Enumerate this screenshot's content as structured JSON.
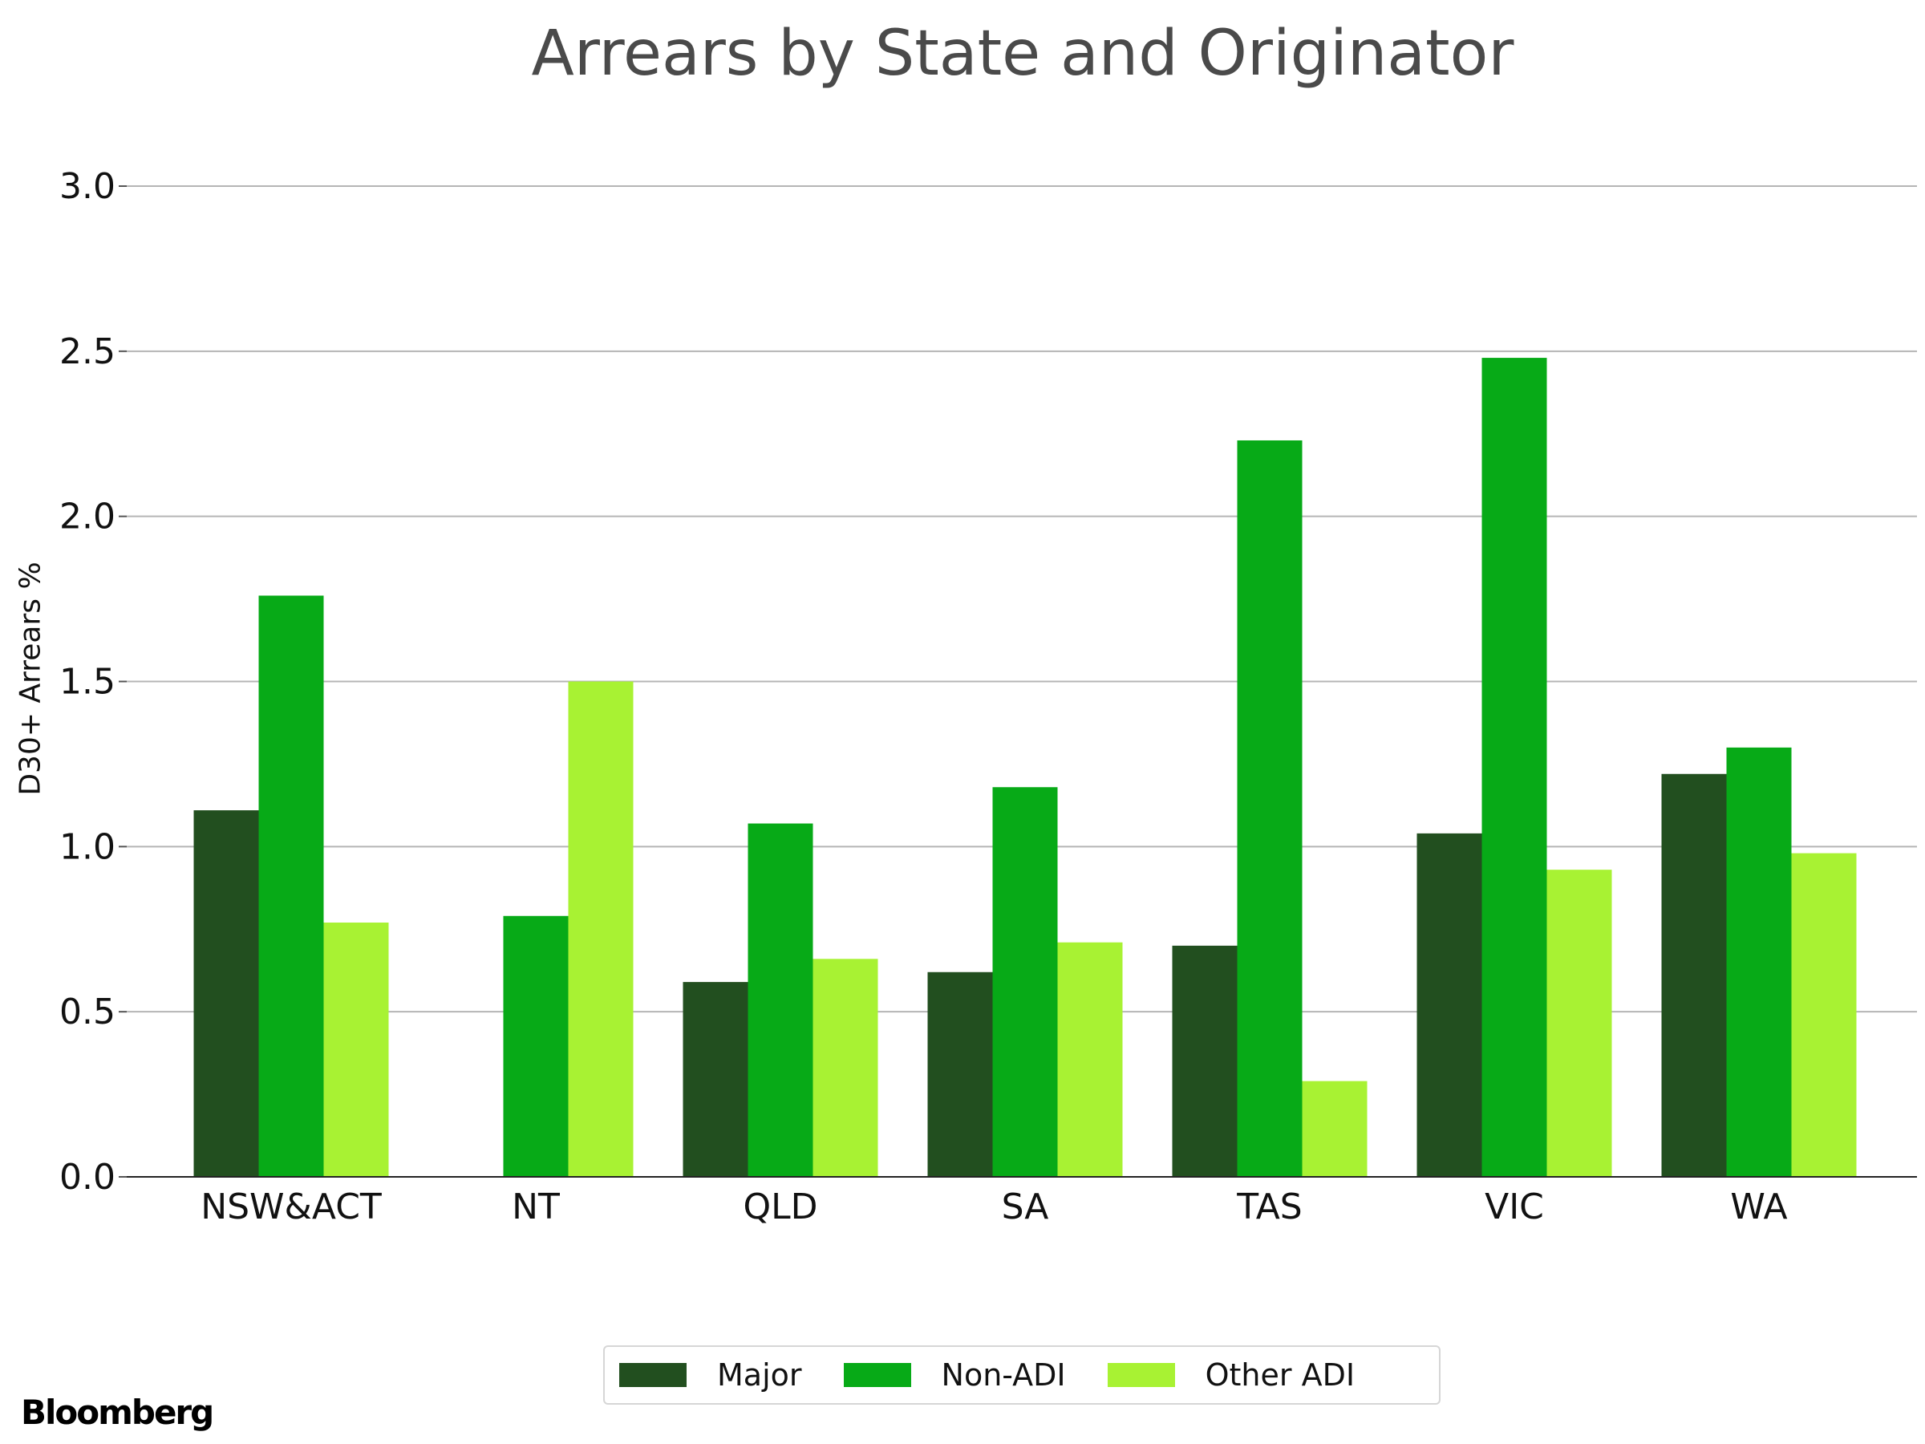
{
  "chart_data": {
    "type": "bar",
    "title": "Arrears by State and Originator",
    "ylabel": "D30+ Arrears %",
    "xlabel": "",
    "categories": [
      "NSW&ACT",
      "NT",
      "QLD",
      "SA",
      "TAS",
      "VIC",
      "WA"
    ],
    "series": [
      {
        "name": "Major",
        "color": "#224f1f",
        "values": [
          1.11,
          null,
          0.59,
          0.62,
          0.7,
          1.04,
          1.22
        ]
      },
      {
        "name": "Non-ADI",
        "color": "#07aa17",
        "values": [
          1.76,
          0.79,
          1.07,
          1.18,
          2.23,
          2.48,
          1.3
        ]
      },
      {
        "name": "Other ADI",
        "color": "#a8f233",
        "values": [
          0.77,
          1.5,
          0.66,
          0.71,
          0.29,
          0.93,
          0.98
        ]
      }
    ],
    "ylim": [
      0,
      3.0
    ],
    "yticks": [
      "0.0",
      "0.5",
      "1.0",
      "1.5",
      "2.0",
      "2.5",
      "3.0"
    ],
    "grid": true,
    "legend": "bottom-center"
  },
  "source": "Bloomberg"
}
